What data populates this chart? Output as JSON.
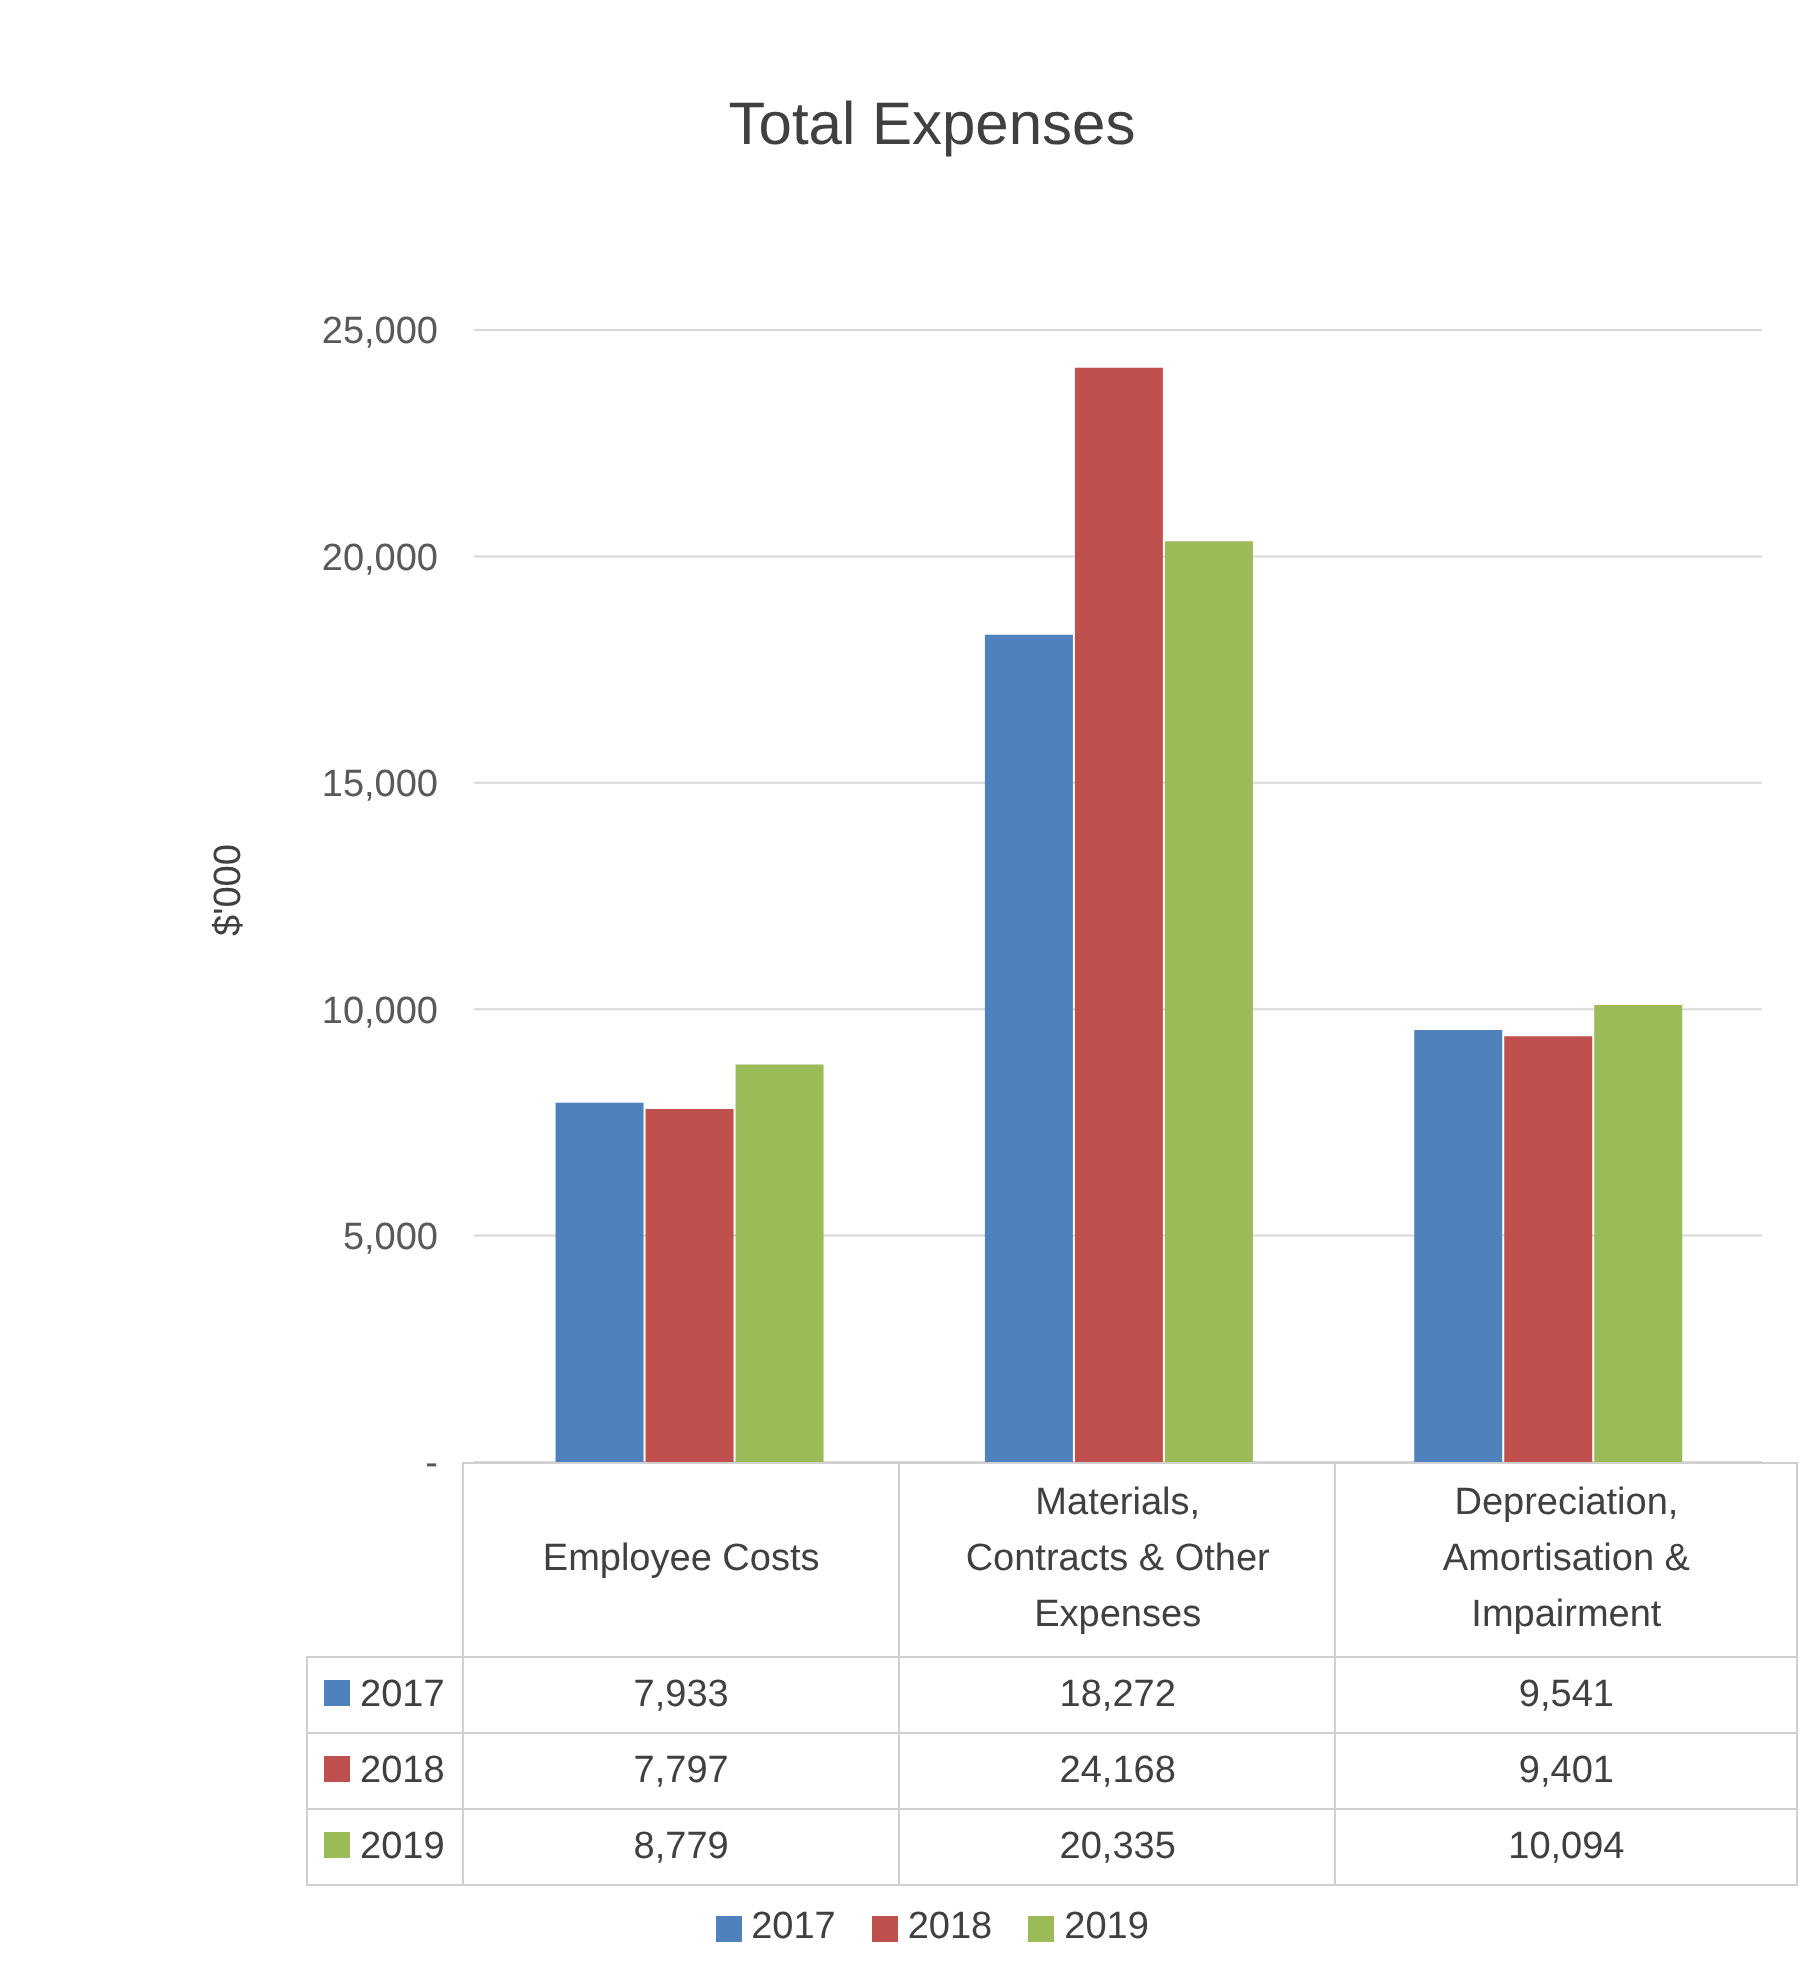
{
  "chart_data": {
    "type": "bar",
    "title": "Total Expenses",
    "ylabel": "$'000",
    "categories": [
      "Employee Costs",
      "Materials, Contracts & Other Expenses",
      "Depreciation, Amortisation & Impairment"
    ],
    "series": [
      {
        "name": "2017",
        "color": "#4f81bd",
        "values": [
          7933,
          18272,
          9541
        ],
        "value_labels": [
          "7,933",
          "18,272",
          "9,541"
        ]
      },
      {
        "name": "2018",
        "color": "#c0504d",
        "values": [
          7797,
          24168,
          9401
        ],
        "value_labels": [
          "7,797",
          "24,168",
          "9,401"
        ]
      },
      {
        "name": "2019",
        "color": "#9bbb59",
        "values": [
          8779,
          20335,
          10094
        ],
        "value_labels": [
          "8,779",
          "20,335",
          "10,094"
        ]
      }
    ],
    "ylim": [
      0,
      25000
    ],
    "yticks": [
      {
        "value": 0,
        "label": "-"
      },
      {
        "value": 5000,
        "label": "5,000"
      },
      {
        "value": 10000,
        "label": "10,000"
      },
      {
        "value": 15000,
        "label": "15,000"
      },
      {
        "value": 20000,
        "label": "20,000"
      },
      {
        "value": 25000,
        "label": "25,000"
      }
    ],
    "grid": "y",
    "legend": "bottom"
  }
}
